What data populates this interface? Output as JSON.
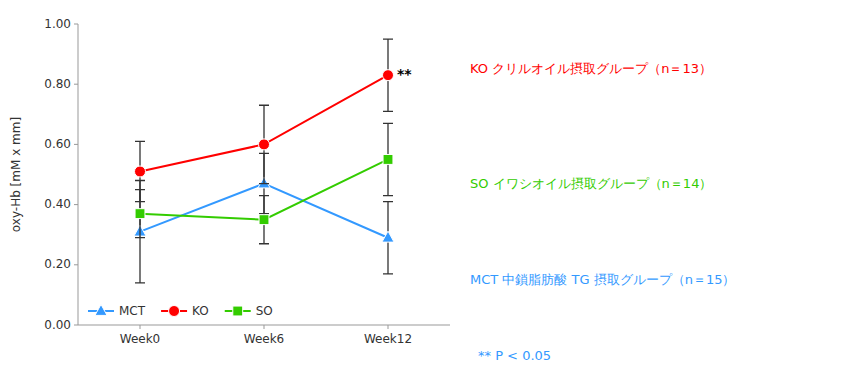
{
  "chart_data": {
    "type": "line",
    "y_label": "oxy-Hb [mM x mm]",
    "categories": [
      "Week0",
      "Week6",
      "Week12"
    ],
    "series": [
      {
        "name": "MCT",
        "color": "#3399FF",
        "marker": "triangle",
        "values": [
          0.31,
          0.47,
          0.29
        ],
        "errors": [
          0.17,
          0.1,
          0.12
        ]
      },
      {
        "name": "KO",
        "color": "#FF0000",
        "marker": "circle",
        "values": [
          0.51,
          0.6,
          0.83
        ],
        "errors": [
          0.1,
          0.13,
          0.12
        ]
      },
      {
        "name": "SO",
        "color": "#33CC00",
        "marker": "square",
        "values": [
          0.37,
          0.35,
          0.55
        ],
        "errors": [
          0.08,
          0.08,
          0.12
        ]
      }
    ],
    "ylim": [
      0.0,
      1.0
    ],
    "yticks": [
      {
        "value": 0.0,
        "label": "0.00"
      },
      {
        "value": 0.2,
        "label": "0.20"
      },
      {
        "value": 0.4,
        "label": "0.40"
      },
      {
        "value": 0.6,
        "label": "0.60"
      },
      {
        "value": 0.8,
        "label": "0.80"
      },
      {
        "value": 1.0,
        "label": "1.00"
      }
    ],
    "grid": false,
    "legend": "lower left",
    "annotations": [
      {
        "text": "**",
        "x": "Week12",
        "y": 0.83
      },
      {
        "text": "KO クリルオイル摂取グループ（n＝13）",
        "color": "#FF0000"
      },
      {
        "text": "SO イワシオイル摂取グループ（n＝14）",
        "color": "#33CC00"
      },
      {
        "text": "MCT 中鎖脂肪酸 TG 摂取グループ（n＝15）",
        "color": "#3399FF"
      },
      {
        "text": "** P < 0.05",
        "color": "#3399FF"
      }
    ]
  }
}
